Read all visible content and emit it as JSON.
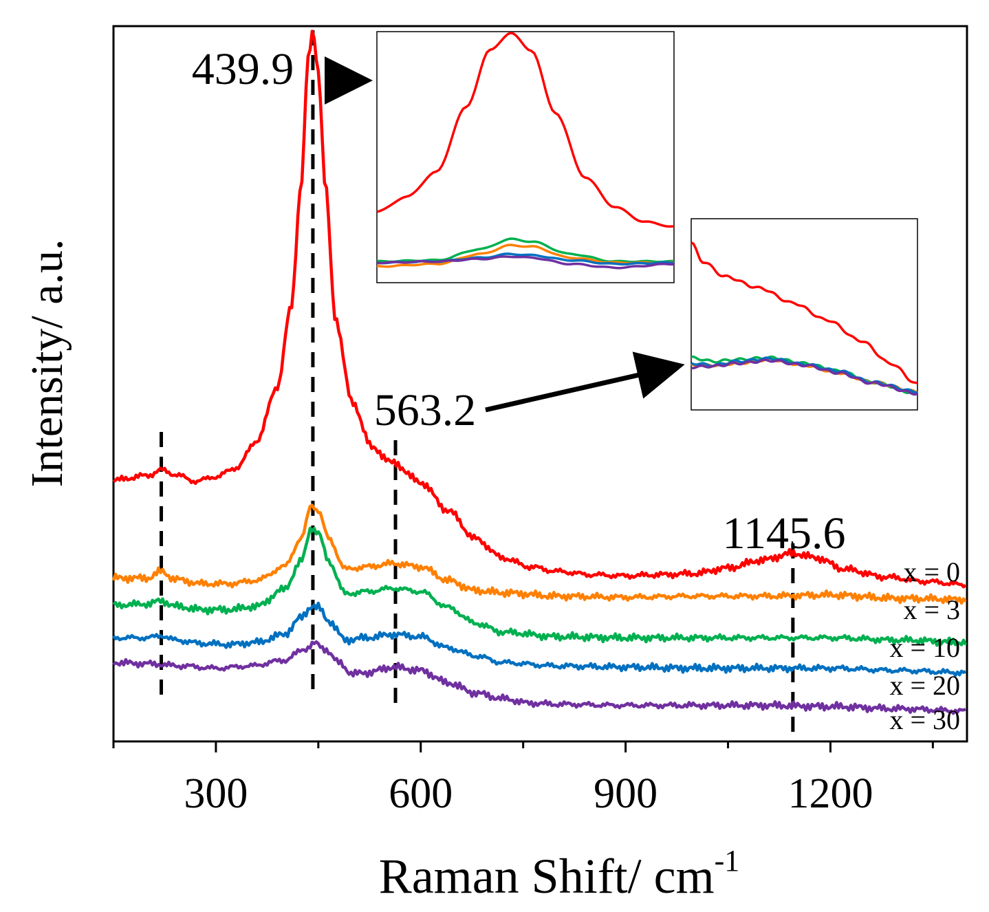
{
  "chart_data": {
    "type": "line",
    "xlabel": "Raman Shift/ cm",
    "xlabel_sup": "-1",
    "ylabel": "Intensity/ a.u.",
    "xlim": [
      150,
      1400
    ],
    "xticks": [
      300,
      600,
      900,
      1200
    ],
    "xticks_minor": [
      150,
      450,
      750,
      1050,
      1350
    ],
    "y_ticks_shown": false,
    "grid": false,
    "legend": "labels at right end of each curve",
    "series": [
      {
        "name": "x = 0",
        "color": "#ff0000",
        "points": [
          [
            150,
            1.27
          ],
          [
            200,
            1.31
          ],
          [
            220,
            1.36
          ],
          [
            240,
            1.32
          ],
          [
            270,
            1.26
          ],
          [
            300,
            1.3
          ],
          [
            330,
            1.38
          ],
          [
            360,
            1.62
          ],
          [
            390,
            2.1
          ],
          [
            410,
            2.8
          ],
          [
            425,
            3.9
          ],
          [
            435,
            5.0
          ],
          [
            442,
            5.25
          ],
          [
            450,
            4.9
          ],
          [
            460,
            3.9
          ],
          [
            475,
            2.7
          ],
          [
            500,
            1.95
          ],
          [
            530,
            1.55
          ],
          [
            560,
            1.42
          ],
          [
            600,
            1.25
          ],
          [
            640,
            1.0
          ],
          [
            680,
            0.75
          ],
          [
            720,
            0.58
          ],
          [
            760,
            0.5
          ],
          [
            800,
            0.46
          ],
          [
            850,
            0.43
          ],
          [
            900,
            0.42
          ],
          [
            950,
            0.43
          ],
          [
            1000,
            0.44
          ],
          [
            1050,
            0.49
          ],
          [
            1100,
            0.56
          ],
          [
            1145,
            0.62
          ],
          [
            1180,
            0.58
          ],
          [
            1220,
            0.48
          ],
          [
            1280,
            0.41
          ],
          [
            1340,
            0.37
          ],
          [
            1400,
            0.34
          ]
        ]
      },
      {
        "name": "x = 3",
        "color": "#ff8000",
        "points": [
          [
            150,
            0.4
          ],
          [
            200,
            0.4
          ],
          [
            220,
            0.46
          ],
          [
            240,
            0.39
          ],
          [
            280,
            0.35
          ],
          [
            320,
            0.35
          ],
          [
            360,
            0.38
          ],
          [
            400,
            0.5
          ],
          [
            425,
            0.75
          ],
          [
            440,
            1.05
          ],
          [
            450,
            1.0
          ],
          [
            465,
            0.75
          ],
          [
            490,
            0.48
          ],
          [
            520,
            0.5
          ],
          [
            560,
            0.53
          ],
          [
            600,
            0.5
          ],
          [
            640,
            0.38
          ],
          [
            680,
            0.29
          ],
          [
            720,
            0.27
          ],
          [
            800,
            0.24
          ],
          [
            900,
            0.23
          ],
          [
            1000,
            0.24
          ],
          [
            1100,
            0.24
          ],
          [
            1200,
            0.25
          ],
          [
            1300,
            0.22
          ],
          [
            1400,
            0.21
          ]
        ]
      },
      {
        "name": "x = 10",
        "color": "#00b050",
        "points": [
          [
            150,
            0.16
          ],
          [
            200,
            0.17
          ],
          [
            220,
            0.2
          ],
          [
            240,
            0.15
          ],
          [
            280,
            0.12
          ],
          [
            320,
            0.12
          ],
          [
            360,
            0.15
          ],
          [
            400,
            0.3
          ],
          [
            425,
            0.55
          ],
          [
            440,
            0.85
          ],
          [
            450,
            0.8
          ],
          [
            465,
            0.55
          ],
          [
            490,
            0.26
          ],
          [
            520,
            0.28
          ],
          [
            560,
            0.31
          ],
          [
            600,
            0.28
          ],
          [
            640,
            0.14
          ],
          [
            680,
            0.0
          ],
          [
            720,
            -0.08
          ],
          [
            800,
            -0.12
          ],
          [
            900,
            -0.13
          ],
          [
            1000,
            -0.13
          ],
          [
            1100,
            -0.13
          ],
          [
            1200,
            -0.13
          ],
          [
            1300,
            -0.15
          ],
          [
            1400,
            -0.17
          ]
        ]
      },
      {
        "name": "x = 20",
        "color": "#0070c0",
        "points": [
          [
            150,
            -0.13
          ],
          [
            200,
            -0.13
          ],
          [
            220,
            -0.11
          ],
          [
            240,
            -0.15
          ],
          [
            280,
            -0.18
          ],
          [
            320,
            -0.19
          ],
          [
            360,
            -0.17
          ],
          [
            400,
            -0.1
          ],
          [
            425,
            0.05
          ],
          [
            440,
            0.15
          ],
          [
            450,
            0.14
          ],
          [
            465,
            0.02
          ],
          [
            490,
            -0.15
          ],
          [
            520,
            -0.13
          ],
          [
            560,
            -0.1
          ],
          [
            600,
            -0.12
          ],
          [
            640,
            -0.22
          ],
          [
            680,
            -0.29
          ],
          [
            720,
            -0.35
          ],
          [
            800,
            -0.38
          ],
          [
            900,
            -0.39
          ],
          [
            1000,
            -0.4
          ],
          [
            1100,
            -0.4
          ],
          [
            1200,
            -0.4
          ],
          [
            1300,
            -0.42
          ],
          [
            1400,
            -0.44
          ]
        ]
      },
      {
        "name": "x = 30",
        "color": "#7030a0",
        "points": [
          [
            150,
            -0.35
          ],
          [
            200,
            -0.36
          ],
          [
            250,
            -0.38
          ],
          [
            300,
            -0.4
          ],
          [
            350,
            -0.38
          ],
          [
            400,
            -0.33
          ],
          [
            430,
            -0.23
          ],
          [
            445,
            -0.18
          ],
          [
            460,
            -0.23
          ],
          [
            480,
            -0.35
          ],
          [
            500,
            -0.45
          ],
          [
            520,
            -0.44
          ],
          [
            560,
            -0.39
          ],
          [
            600,
            -0.42
          ],
          [
            640,
            -0.53
          ],
          [
            680,
            -0.62
          ],
          [
            720,
            -0.67
          ],
          [
            760,
            -0.71
          ],
          [
            800,
            -0.72
          ],
          [
            900,
            -0.73
          ],
          [
            1000,
            -0.73
          ],
          [
            1100,
            -0.73
          ],
          [
            1200,
            -0.74
          ],
          [
            1300,
            -0.76
          ],
          [
            1400,
            -0.78
          ]
        ]
      }
    ],
    "annotations": [
      {
        "text": "439.9",
        "x": 439.9
      },
      {
        "text": "563.2",
        "x": 563.2
      },
      {
        "text": "1145.6",
        "x": 1145.6
      }
    ],
    "dashed_lines_x": [
      220,
      442,
      563,
      1145
    ],
    "insets": [
      {
        "of_peak": "439.9",
        "series": [
          {
            "color": "#ff0000",
            "points": [
              [
                0,
                0.28
              ],
              [
                0.1,
                0.34
              ],
              [
                0.2,
                0.44
              ],
              [
                0.3,
                0.7
              ],
              [
                0.38,
                0.93
              ],
              [
                0.45,
                1.0
              ],
              [
                0.52,
                0.93
              ],
              [
                0.6,
                0.68
              ],
              [
                0.7,
                0.42
              ],
              [
                0.8,
                0.3
              ],
              [
                0.9,
                0.24
              ],
              [
                1,
                0.22
              ]
            ]
          },
          {
            "color": "#00b050",
            "points": [
              [
                0,
                0.08
              ],
              [
                0.2,
                0.085
              ],
              [
                0.35,
                0.13
              ],
              [
                0.45,
                0.17
              ],
              [
                0.52,
                0.16
              ],
              [
                0.65,
                0.11
              ],
              [
                0.8,
                0.08
              ],
              [
                1,
                0.08
              ]
            ]
          },
          {
            "color": "#ff8000",
            "points": [
              [
                0,
                0.06
              ],
              [
                0.2,
                0.07
              ],
              [
                0.35,
                0.11
              ],
              [
                0.45,
                0.145
              ],
              [
                0.52,
                0.14
              ],
              [
                0.65,
                0.095
              ],
              [
                0.8,
                0.075
              ],
              [
                1,
                0.075
              ]
            ]
          },
          {
            "color": "#0070c0",
            "points": [
              [
                0,
                0.075
              ],
              [
                0.2,
                0.08
              ],
              [
                0.35,
                0.095
              ],
              [
                0.45,
                0.11
              ],
              [
                0.52,
                0.105
              ],
              [
                0.65,
                0.085
              ],
              [
                0.8,
                0.07
              ],
              [
                1,
                0.075
              ]
            ]
          },
          {
            "color": "#7030a0",
            "points": [
              [
                0,
                0.075
              ],
              [
                0.2,
                0.08
              ],
              [
                0.35,
                0.09
              ],
              [
                0.45,
                0.1
              ],
              [
                0.52,
                0.095
              ],
              [
                0.65,
                0.07
              ],
              [
                0.8,
                0.055
              ],
              [
                1,
                0.07
              ]
            ]
          }
        ]
      },
      {
        "of_peak": "563.2",
        "series": [
          {
            "color": "#ff0000",
            "points": [
              [
                0,
                0.88
              ],
              [
                0.05,
                0.78
              ],
              [
                0.15,
                0.7
              ],
              [
                0.3,
                0.64
              ],
              [
                0.45,
                0.56
              ],
              [
                0.6,
                0.47
              ],
              [
                0.75,
                0.36
              ],
              [
                0.88,
                0.24
              ],
              [
                1,
                0.13
              ]
            ]
          },
          {
            "color": "#00b050",
            "points": [
              [
                0,
                0.27
              ],
              [
                0.1,
                0.25
              ],
              [
                0.2,
                0.26
              ],
              [
                0.35,
                0.27
              ],
              [
                0.5,
                0.24
              ],
              [
                0.65,
                0.2
              ],
              [
                0.8,
                0.14
              ],
              [
                1,
                0.08
              ]
            ]
          },
          {
            "color": "#ff8000",
            "points": [
              [
                0,
                0.23
              ],
              [
                0.1,
                0.23
              ],
              [
                0.2,
                0.24
              ],
              [
                0.35,
                0.26
              ],
              [
                0.5,
                0.23
              ],
              [
                0.65,
                0.19
              ],
              [
                0.8,
                0.14
              ],
              [
                1,
                0.09
              ]
            ]
          },
          {
            "color": "#0070c0",
            "points": [
              [
                0,
                0.24
              ],
              [
                0.1,
                0.23
              ],
              [
                0.2,
                0.25
              ],
              [
                0.35,
                0.265
              ],
              [
                0.5,
                0.235
              ],
              [
                0.65,
                0.2
              ],
              [
                0.8,
                0.14
              ],
              [
                1,
                0.09
              ]
            ]
          },
          {
            "color": "#7030a0",
            "points": [
              [
                0,
                0.22
              ],
              [
                0.1,
                0.225
              ],
              [
                0.2,
                0.24
              ],
              [
                0.35,
                0.255
              ],
              [
                0.5,
                0.23
              ],
              [
                0.65,
                0.19
              ],
              [
                0.8,
                0.135
              ],
              [
                1,
                0.08
              ]
            ]
          }
        ]
      }
    ]
  }
}
